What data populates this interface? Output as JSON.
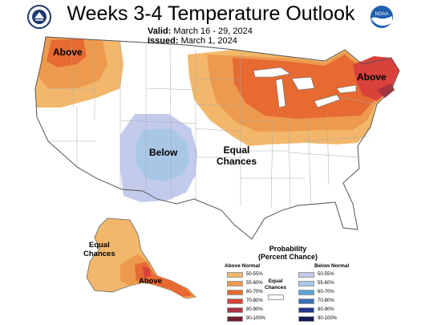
{
  "title": "Weeks 3-4 Temperature Outlook",
  "valid_label": "Valid:",
  "valid_dates": "March 16 - 29, 2024",
  "issued_label": "Issued:",
  "issued_date": "March 1, 2024",
  "logos": {
    "left": "noaa-seal-icon",
    "right": "noaa-logo-icon",
    "right_text": "NOAA"
  },
  "map_labels": {
    "above_nw": "Above",
    "above_ne": "Above",
    "below": "Below",
    "equal_chances": "Equal\nChances",
    "alaska_equal": "Equal\nChances",
    "alaska_above": "Above"
  },
  "legend": {
    "title": "Probability\n(Percent Chance)",
    "above_header": "Above Normal",
    "below_header": "Below Normal",
    "equal_label": "Equal\nChances",
    "above": [
      {
        "label": "50-55%",
        "color": "#f2b76a"
      },
      {
        "label": "55-60%",
        "color": "#ee9a4e"
      },
      {
        "label": "60-70%",
        "color": "#e66a32"
      },
      {
        "label": "70-80%",
        "color": "#d8423a"
      },
      {
        "label": "80-90%",
        "color": "#a83240"
      },
      {
        "label": "90-100%",
        "color": "#6e1e2c"
      }
    ],
    "below": [
      {
        "label": "50-55%",
        "color": "#c3cbec"
      },
      {
        "label": "55-60%",
        "color": "#a8c7e6"
      },
      {
        "label": "60-70%",
        "color": "#5aa4d8"
      },
      {
        "label": "70-80%",
        "color": "#3570b8"
      },
      {
        "label": "80-90%",
        "color": "#22358c"
      },
      {
        "label": "90-100%",
        "color": "#121c55"
      }
    ]
  }
}
